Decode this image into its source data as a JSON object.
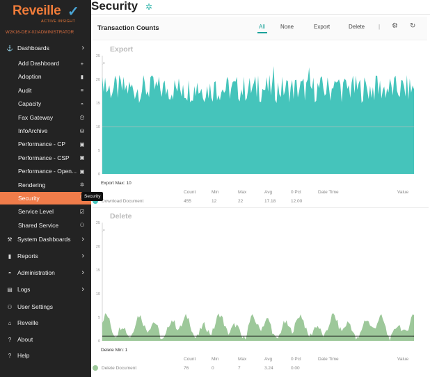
{
  "sidebar": {
    "logo_text": "Reveille",
    "logo_sub": "ACTIVE INSIGHT",
    "server": "W2K16-DEV-02\\ADMINISTRATOR",
    "dashboards_label": "Dashboards",
    "sub_items": [
      {
        "label": "Add Dashboard",
        "icon": "plus-icon"
      },
      {
        "label": "Adoption",
        "icon": "bar-chart-icon"
      },
      {
        "label": "Audit",
        "icon": "list-icon"
      },
      {
        "label": "Capacity",
        "icon": "gauge-icon"
      },
      {
        "label": "Fax Gateway",
        "icon": "fax-icon"
      },
      {
        "label": "InfoArchive",
        "icon": "database-icon"
      },
      {
        "label": "Performance - CP",
        "icon": "chart-box-icon"
      },
      {
        "label": "Performance - CSP",
        "icon": "chart-box-icon"
      },
      {
        "label": "Performance - Open...",
        "icon": "chart-box-icon"
      },
      {
        "label": "Rendering",
        "icon": "gear-icon"
      },
      {
        "label": "Security",
        "icon": "shield-icon"
      },
      {
        "label": "Service Level",
        "icon": "check-box-icon"
      },
      {
        "label": "Shared Service",
        "icon": "user-icon"
      }
    ],
    "sections": [
      {
        "label": "System Dashboards",
        "icon": "wrench-icon",
        "chevron": true
      },
      {
        "label": "Reports",
        "icon": "bar-chart-icon",
        "chevron": true
      },
      {
        "label": "Administration",
        "icon": "gauge-icon",
        "chevron": true
      },
      {
        "label": "Logs",
        "icon": "document-icon",
        "chevron": true
      },
      {
        "label": "User Settings",
        "icon": "user-icon",
        "chevron": false
      },
      {
        "label": "Reveille",
        "icon": "home-icon",
        "chevron": false
      },
      {
        "label": "About",
        "icon": "question-icon",
        "chevron": false
      },
      {
        "label": "Help",
        "icon": "question-icon",
        "chevron": false
      }
    ],
    "tooltip": "Security"
  },
  "page": {
    "title": "Security"
  },
  "card": {
    "title": "Transaction Counts",
    "filters": [
      "All",
      "None",
      "Export",
      "Delete"
    ],
    "active_filter": "All",
    "separator": "|"
  },
  "stats_headers": [
    "Count",
    "Min",
    "Max",
    "Avg",
    "0 Pct",
    "Date Time",
    "Value"
  ],
  "export_chart": {
    "title": "Export",
    "caption": "Export Max: 10",
    "row": {
      "name": "Download Document",
      "count": "455",
      "min": "12",
      "max": "22",
      "avg": "17.18",
      "pct": "12.00",
      "datetime": "",
      "value": ""
    }
  },
  "delete_chart": {
    "title": "Delete",
    "caption": "Delete Min: 1",
    "row": {
      "name": "Delete Document",
      "count": "76",
      "min": "0",
      "max": "7",
      "avg": "3.24",
      "pct": "0.00",
      "datetime": "",
      "value": ""
    }
  },
  "colors": {
    "accent": "#f07c4a",
    "export_fill": "#45c4bb",
    "delete_fill": "#9dc89a",
    "sidebar_bg": "#232323"
  },
  "chart_data": [
    {
      "type": "area",
      "title": "Export",
      "yticks": [
        "0",
        "5",
        "10",
        "15",
        "20",
        "25"
      ],
      "ylim": [
        0,
        25
      ],
      "threshold": 10,
      "series": [
        {
          "name": "Download Document",
          "min": 12,
          "max": 22,
          "avg": 17.18
        }
      ]
    },
    {
      "type": "area",
      "title": "Delete",
      "yticks": [
        "0",
        "5",
        "10",
        "15",
        "20",
        "25"
      ],
      "ylim": [
        0,
        25
      ],
      "threshold": 1,
      "series": [
        {
          "name": "Delete Document",
          "min": 0,
          "max": 7,
          "avg": 3.24
        }
      ]
    }
  ]
}
